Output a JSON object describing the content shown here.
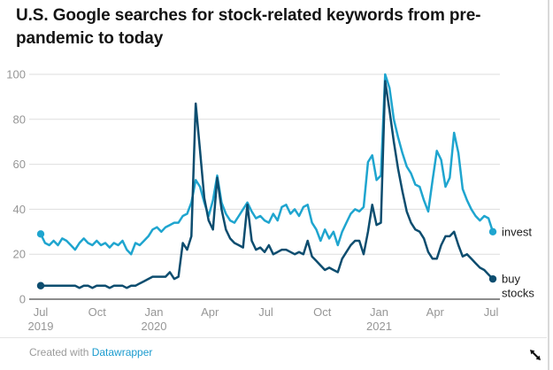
{
  "header": {
    "title": "U.S. Google searches for stock-related keywords from pre-pandemic to today"
  },
  "footer": {
    "created_with": "Created with ",
    "tool": "Datawrapper"
  },
  "colors": {
    "invest_line": "#1fa5cf",
    "buy_stocks_line": "#0d4d6f",
    "grid": "#dedede",
    "zero_axis": "#191919",
    "tick_label": "#969696",
    "series_label": "#1c1c1c",
    "title_text": "#141414",
    "datawrapper_link": "#1a9bce"
  },
  "chart_data": {
    "type": "line",
    "title": "U.S. Google searches for stock-related keywords from pre-pandemic to today",
    "xlabel": "",
    "ylabel": "",
    "ylim": [
      0,
      100
    ],
    "grid": "horizontal",
    "legend_position": "end-of-line-labels",
    "x_unit": "weeks from Jul 2019 to mid-Jul 2021",
    "y_ticks": [
      0,
      20,
      40,
      60,
      80,
      100
    ],
    "x_ticks": [
      {
        "pos": 0,
        "label": "Jul",
        "year": "2019"
      },
      {
        "pos": 13.1,
        "label": "Oct",
        "year": ""
      },
      {
        "pos": 26.3,
        "label": "Jan",
        "year": "2020"
      },
      {
        "pos": 39.3,
        "label": "Apr",
        "year": ""
      },
      {
        "pos": 52.3,
        "label": "Jul",
        "year": ""
      },
      {
        "pos": 65.4,
        "label": "Oct",
        "year": ""
      },
      {
        "pos": 78.6,
        "label": "Jan",
        "year": "2021"
      },
      {
        "pos": 91.6,
        "label": "Apr",
        "year": ""
      },
      {
        "pos": 104.6,
        "label": "Jul",
        "year": ""
      }
    ],
    "series": [
      {
        "name": "invest",
        "label_lines": [
          "invest"
        ],
        "color_key": "invest_line",
        "values": [
          29,
          25,
          24,
          26,
          24,
          27,
          26,
          24,
          22,
          25,
          27,
          25,
          24,
          26,
          24,
          25,
          23,
          25,
          24,
          26,
          22,
          20,
          25,
          24,
          26,
          28,
          31,
          32,
          30,
          32,
          33,
          34,
          34,
          37,
          38,
          43,
          53,
          50,
          43,
          37,
          44,
          55,
          43,
          38,
          35,
          34,
          37,
          40,
          43,
          39,
          36,
          37,
          35,
          34,
          38,
          35,
          41,
          42,
          38,
          40,
          37,
          41,
          42,
          34,
          31,
          26,
          31,
          27,
          30,
          24,
          30,
          34,
          38,
          40,
          39,
          41,
          61,
          64,
          53,
          55,
          100,
          94,
          80,
          72,
          65,
          59,
          56,
          51,
          50,
          44,
          39,
          53,
          66,
          62,
          50,
          54,
          74,
          65,
          49,
          44,
          40,
          37,
          35,
          37,
          36,
          30
        ]
      },
      {
        "name": "buy stocks",
        "label_lines": [
          "buy",
          "stocks"
        ],
        "color_key": "buy_stocks_line",
        "values": [
          6,
          6,
          6,
          6,
          6,
          6,
          6,
          6,
          6,
          5,
          6,
          6,
          5,
          6,
          6,
          6,
          5,
          6,
          6,
          6,
          5,
          6,
          6,
          7,
          8,
          9,
          10,
          10,
          10,
          10,
          12,
          9,
          10,
          25,
          22,
          28,
          87,
          66,
          45,
          35,
          31,
          54,
          40,
          31,
          27,
          25,
          24,
          23,
          42,
          26,
          22,
          23,
          21,
          24,
          20,
          21,
          22,
          22,
          21,
          20,
          21,
          20,
          26,
          19,
          17,
          15,
          13,
          14,
          13,
          12,
          18,
          21,
          24,
          26,
          26,
          20,
          30,
          42,
          33,
          34,
          97,
          84,
          70,
          58,
          48,
          39,
          34,
          31,
          30,
          27,
          21,
          18,
          18,
          24,
          28,
          28,
          30,
          24,
          19,
          20,
          18,
          16,
          14,
          13,
          11,
          9
        ]
      }
    ]
  }
}
